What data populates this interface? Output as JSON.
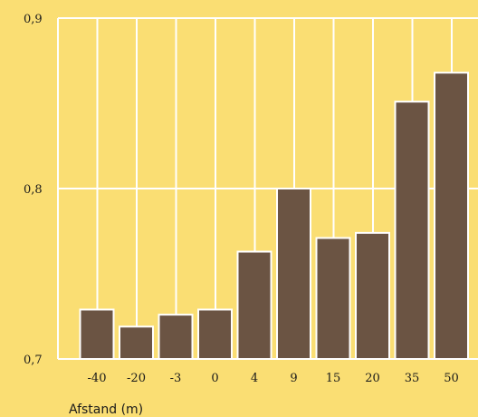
{
  "chart_data": {
    "type": "bar",
    "categories": [
      "-40",
      "-20",
      "-3",
      "0",
      "4",
      "9",
      "15",
      "20",
      "35",
      "50"
    ],
    "values": [
      0.729,
      0.719,
      0.726,
      0.729,
      0.763,
      0.8,
      0.771,
      0.774,
      0.851,
      0.868
    ],
    "xlabel": "Afstand (m)",
    "ylim": [
      0.7,
      0.9
    ],
    "yticks": [
      "0,7",
      "0,8",
      "0,9"
    ],
    "grid": true,
    "colors": {
      "background": "#FADE73",
      "bar": "#6B5443",
      "bar_border": "#FFFFFF",
      "grid": "#FFFFFF"
    }
  }
}
